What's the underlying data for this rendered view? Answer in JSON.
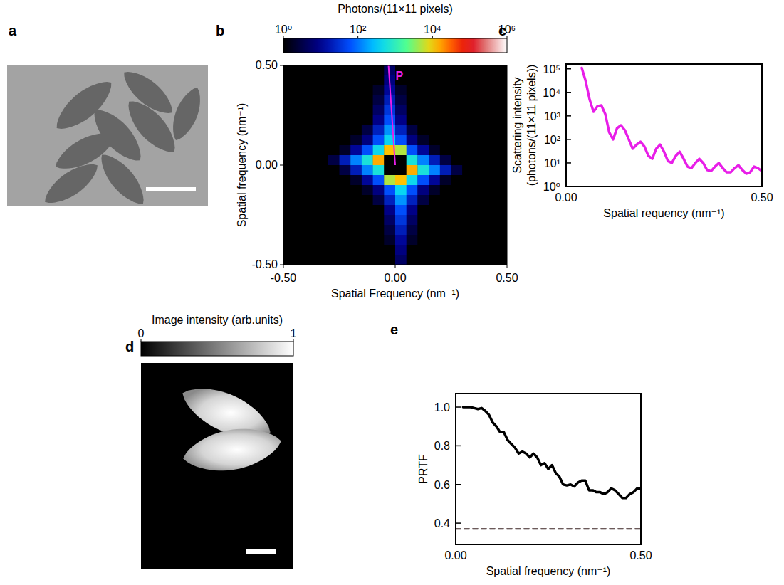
{
  "chart_data": [
    {
      "type": "image",
      "panel": "a"
    },
    {
      "type": "heatmap",
      "panel": "b",
      "x_label": "Spatial Frequency (nm⁻¹)",
      "y_label": "Spatial frequency (nm⁻¹)",
      "xlim": [
        -0.5,
        0.5
      ],
      "ylim": [
        -0.5,
        0.5
      ],
      "xticks": [
        {
          "value": -0.5,
          "label": "-0.50"
        },
        {
          "value": 0,
          "label": "0.00"
        },
        {
          "value": 0.5,
          "label": "0.50"
        }
      ],
      "yticks": [
        {
          "value": -0.5,
          "label": "-0.50"
        },
        {
          "value": 0,
          "label": "0.00"
        },
        {
          "value": 0.5,
          "label": "0.50"
        }
      ],
      "cells": [
        [
          1,
          1,
          1,
          1,
          1,
          1,
          1,
          1,
          1,
          5,
          1,
          1,
          1,
          1,
          1,
          1,
          1,
          1,
          1,
          1
        ],
        [
          1,
          1,
          1,
          1,
          1,
          1,
          1,
          1,
          1,
          8,
          1,
          1,
          1,
          1,
          1,
          1,
          1,
          1,
          1,
          1
        ],
        [
          1,
          1,
          1,
          1,
          1,
          1,
          1,
          1,
          2,
          12,
          2,
          1,
          1,
          1,
          1,
          1,
          1,
          1,
          1,
          1
        ],
        [
          1,
          1,
          1,
          1,
          1,
          1,
          1,
          1,
          3,
          20,
          3,
          1,
          1,
          1,
          1,
          1,
          1,
          1,
          1,
          1
        ],
        [
          1,
          1,
          1,
          1,
          1,
          1,
          1,
          1,
          5,
          35,
          5,
          1,
          1,
          1,
          1,
          1,
          1,
          1,
          1,
          1
        ],
        [
          1,
          1,
          1,
          1,
          1,
          1,
          1,
          1,
          9,
          60,
          9,
          1,
          1,
          1,
          1,
          1,
          1,
          1,
          1,
          1
        ],
        [
          1,
          1,
          1,
          1,
          1,
          1,
          1,
          3,
          22,
          150,
          22,
          3,
          1,
          1,
          1,
          1,
          1,
          1,
          1,
          1
        ],
        [
          1,
          1,
          1,
          1,
          1,
          1,
          2,
          8,
          60,
          400,
          60,
          8,
          2,
          1,
          1,
          1,
          1,
          1,
          1,
          1
        ],
        [
          1,
          1,
          1,
          1,
          1,
          2,
          12,
          60,
          450,
          12000,
          5000,
          60,
          12,
          2,
          1,
          1,
          1,
          1,
          1,
          1
        ],
        [
          1,
          1,
          1,
          1,
          3,
          20,
          120,
          600,
          15000,
          null,
          null,
          600,
          120,
          20,
          3,
          1,
          1,
          1,
          1,
          1
        ],
        [
          1,
          1,
          1,
          1,
          1,
          3,
          20,
          120,
          600,
          null,
          null,
          15000,
          600,
          120,
          20,
          3,
          1,
          1,
          1,
          1
        ],
        [
          1,
          1,
          1,
          1,
          1,
          1,
          2,
          12,
          60,
          5000,
          12000,
          450,
          60,
          12,
          2,
          1,
          1,
          1,
          1,
          1
        ],
        [
          1,
          1,
          1,
          1,
          1,
          1,
          1,
          2,
          8,
          60,
          400,
          60,
          8,
          2,
          1,
          1,
          1,
          1,
          1,
          1
        ],
        [
          1,
          1,
          1,
          1,
          1,
          1,
          1,
          1,
          3,
          22,
          150,
          22,
          3,
          1,
          1,
          1,
          1,
          1,
          1,
          1
        ],
        [
          1,
          1,
          1,
          1,
          1,
          1,
          1,
          1,
          1,
          9,
          60,
          9,
          1,
          1,
          1,
          1,
          1,
          1,
          1,
          1
        ],
        [
          1,
          1,
          1,
          1,
          1,
          1,
          1,
          1,
          1,
          5,
          35,
          5,
          1,
          1,
          1,
          1,
          1,
          1,
          1,
          1
        ],
        [
          1,
          1,
          1,
          1,
          1,
          1,
          1,
          1,
          1,
          3,
          20,
          3,
          1,
          1,
          1,
          1,
          1,
          1,
          1,
          1
        ],
        [
          1,
          1,
          1,
          1,
          1,
          1,
          1,
          1,
          1,
          2,
          12,
          2,
          1,
          1,
          1,
          1,
          1,
          1,
          1,
          1
        ],
        [
          1,
          1,
          1,
          1,
          1,
          1,
          1,
          1,
          1,
          1,
          8,
          1,
          1,
          1,
          1,
          1,
          1,
          1,
          1,
          1
        ],
        [
          1,
          1,
          1,
          1,
          1,
          1,
          1,
          1,
          1,
          1,
          5,
          1,
          1,
          1,
          1,
          1,
          1,
          1,
          1,
          1
        ]
      ],
      "colorbar": {
        "label": "Photons/(11×11 pixels)",
        "log": true,
        "range": [
          1,
          1000000
        ],
        "ticks": [
          {
            "value": 1,
            "label": "10⁰"
          },
          {
            "value": 100,
            "label": "10²"
          },
          {
            "value": 10000,
            "label": "10⁴"
          },
          {
            "value": 1000000,
            "label": "10⁶"
          }
        ]
      },
      "profile": {
        "label": "P",
        "x": [
          0,
          -0.03
        ],
        "y": [
          0,
          0.5
        ],
        "color": "#e81ee8"
      }
    },
    {
      "type": "line",
      "panel": "c",
      "x_label": "Spatial requency (nm⁻¹)",
      "y_label": "Scattering intensity (photons/(11×11 pixels))",
      "log": "y",
      "xlim": [
        0,
        0.5
      ],
      "ylim": [
        1,
        160000
      ],
      "xticks": [
        {
          "value": 0,
          "label": "0.00"
        },
        {
          "value": 0.5,
          "label": "0.50"
        }
      ],
      "yticks": [
        {
          "value": 1,
          "label": "10⁰"
        },
        {
          "value": 10,
          "label": "10¹"
        },
        {
          "value": 100,
          "label": "10²"
        },
        {
          "value": 1000,
          "label": "10³"
        },
        {
          "value": 10000,
          "label": "10⁴"
        },
        {
          "value": 100000,
          "label": "10⁵"
        }
      ],
      "x": [
        0.04,
        0.05,
        0.06,
        0.07,
        0.08,
        0.09,
        0.1,
        0.11,
        0.12,
        0.13,
        0.14,
        0.15,
        0.16,
        0.17,
        0.18,
        0.19,
        0.2,
        0.21,
        0.22,
        0.23,
        0.24,
        0.25,
        0.26,
        0.27,
        0.28,
        0.29,
        0.3,
        0.31,
        0.32,
        0.33,
        0.34,
        0.35,
        0.36,
        0.37,
        0.38,
        0.39,
        0.4,
        0.41,
        0.42,
        0.43,
        0.44,
        0.45,
        0.46,
        0.47,
        0.48,
        0.49,
        0.5
      ],
      "series": [
        {
          "color": "#e81ee8",
          "values": [
            110000,
            30000,
            5000,
            1500,
            2600,
            2800,
            1200,
            200,
            100,
            300,
            400,
            250,
            100,
            40,
            60,
            80,
            50,
            20,
            15,
            40,
            60,
            30,
            12,
            10,
            20,
            30,
            15,
            7,
            6,
            10,
            15,
            10,
            5,
            4.5,
            7,
            10,
            6,
            4,
            4,
            6,
            8,
            5,
            3.5,
            4,
            7,
            6,
            4.5
          ]
        }
      ]
    },
    {
      "type": "image",
      "panel": "d",
      "colorbar": {
        "label": "Image intensity (arb.units)",
        "range": [
          0,
          1
        ],
        "ticks": [
          0,
          1
        ]
      }
    },
    {
      "type": "line",
      "panel": "e",
      "x_label": "Spatial frequency (nm⁻¹)",
      "y_label": "PRTF",
      "xlim": [
        0,
        0.5
      ],
      "ylim": [
        0.29,
        1.07
      ],
      "xticks": [
        {
          "value": 0,
          "label": "0.00"
        },
        {
          "value": 0.5,
          "label": "0.50"
        }
      ],
      "yticks": [
        0.4,
        0.6,
        0.8,
        {
          "value": 1,
          "label": "1.0"
        }
      ],
      "series": [
        {
          "color": "#000000",
          "x": [
            0.02,
            0.03,
            0.04,
            0.05,
            0.06,
            0.07,
            0.08,
            0.09,
            0.1,
            0.11,
            0.12,
            0.13,
            0.14,
            0.15,
            0.16,
            0.17,
            0.18,
            0.19,
            0.2,
            0.21,
            0.22,
            0.23,
            0.24,
            0.25,
            0.26,
            0.27,
            0.28,
            0.29,
            0.3,
            0.31,
            0.32,
            0.33,
            0.34,
            0.35,
            0.36,
            0.37,
            0.38,
            0.39,
            0.4,
            0.41,
            0.42,
            0.43,
            0.44,
            0.45,
            0.46,
            0.47,
            0.48,
            0.49,
            0.5
          ],
          "values": [
            1.0,
            1.0,
            1.0,
            0.995,
            0.99,
            0.995,
            0.98,
            0.96,
            0.92,
            0.9,
            0.87,
            0.87,
            0.83,
            0.81,
            0.79,
            0.76,
            0.77,
            0.76,
            0.74,
            0.76,
            0.74,
            0.7,
            0.71,
            0.68,
            0.7,
            0.66,
            0.64,
            0.6,
            0.595,
            0.6,
            0.59,
            0.61,
            0.62,
            0.62,
            0.57,
            0.57,
            0.56,
            0.56,
            0.55,
            0.56,
            0.58,
            0.57,
            0.55,
            0.53,
            0.53,
            0.55,
            0.56,
            0.58,
            0.58
          ]
        },
        {
          "color": "#3b2424",
          "line_style": "dashed",
          "x": [
            0,
            0.5
          ],
          "values": [
            0.37,
            0.37
          ]
        }
      ]
    }
  ]
}
